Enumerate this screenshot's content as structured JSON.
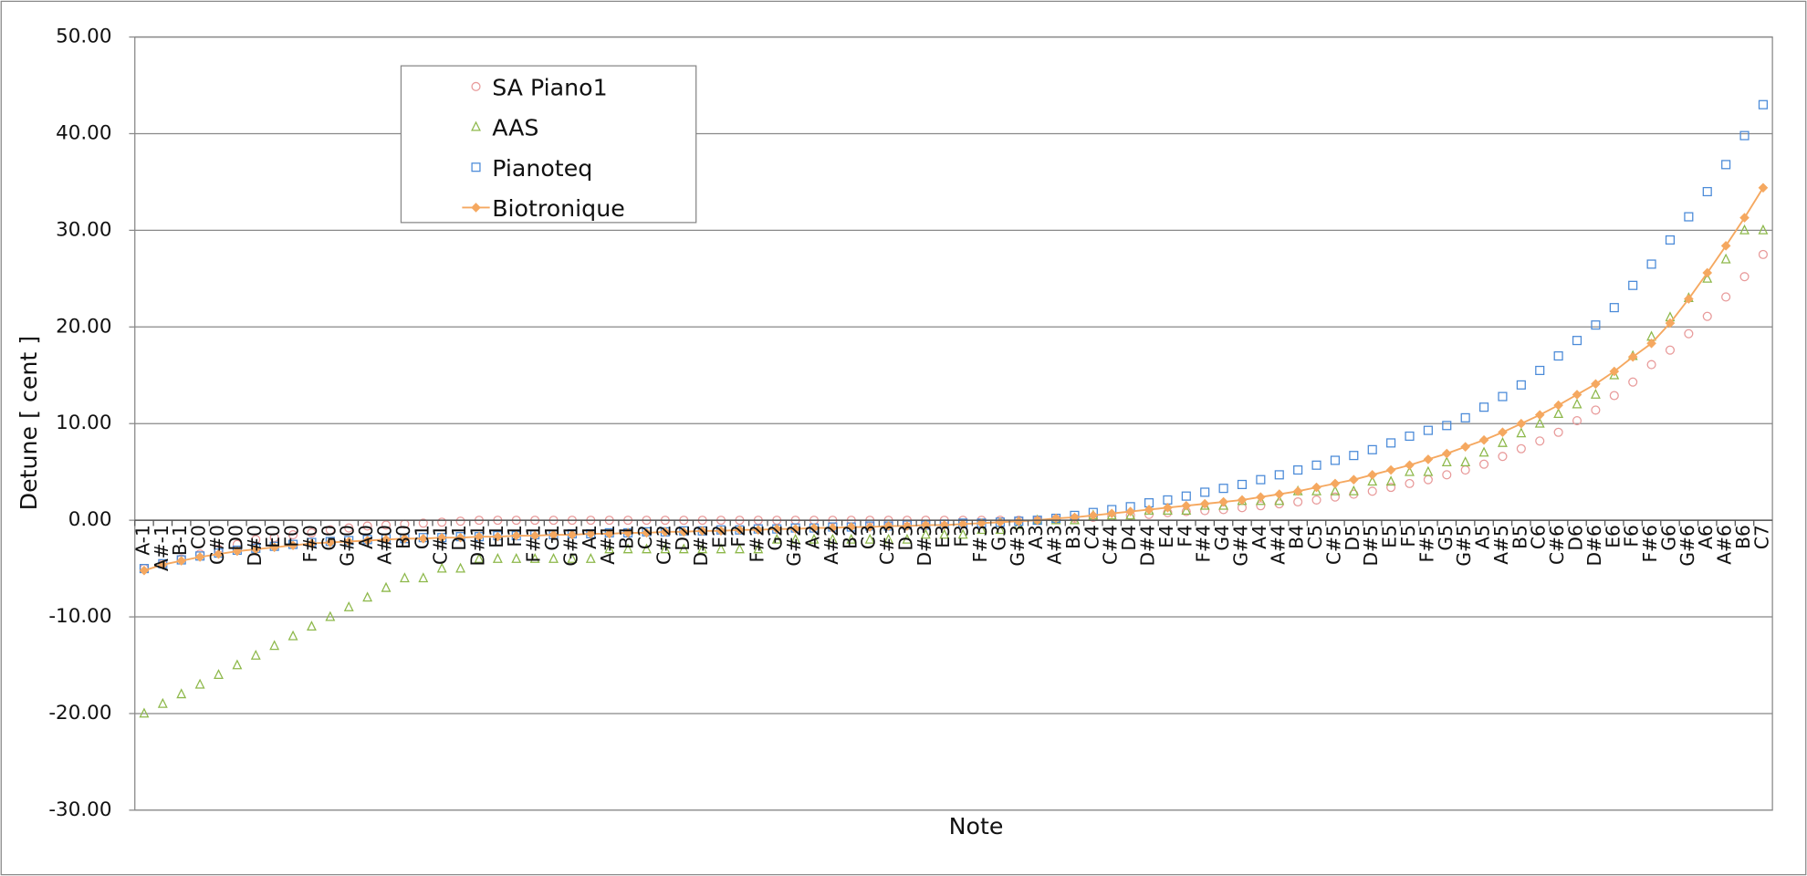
{
  "chart_data": {
    "type": "scatter",
    "ylabel": "Detune [ cent ]",
    "xlabel": "Note",
    "ylim": [
      -30,
      50
    ],
    "yticks": [
      {
        "value": -30,
        "label": "-30.00"
      },
      {
        "value": -20,
        "label": "-20.00"
      },
      {
        "value": -10,
        "label": "-10.00"
      },
      {
        "value": 0,
        "label": "0.00"
      },
      {
        "value": 10,
        "label": "10.00"
      },
      {
        "value": 20,
        "label": "20.00"
      },
      {
        "value": 30,
        "label": "30.00"
      },
      {
        "value": 40,
        "label": "40.00"
      },
      {
        "value": 50,
        "label": "50.00"
      }
    ],
    "grid": true,
    "legend": "upper left",
    "categories": [
      "A-1",
      "A#-1",
      "B-1",
      "C0",
      "C#0",
      "D0",
      "D#0",
      "E0",
      "F0",
      "F#0",
      "G0",
      "G#0",
      "A0",
      "A#0",
      "B0",
      "C1",
      "C#1",
      "D1",
      "D#1",
      "E1",
      "F1",
      "F#1",
      "G1",
      "G#1",
      "A1",
      "A#1",
      "B1",
      "C2",
      "C#2",
      "D2",
      "D#2",
      "E2",
      "F2",
      "F#2",
      "G2",
      "G#2",
      "A2",
      "A#2",
      "B2",
      "C3",
      "C#3",
      "D3",
      "D#3",
      "E3",
      "F3",
      "F#3",
      "G3",
      "G#3",
      "A3",
      "A#3",
      "B3",
      "C4",
      "C#4",
      "D4",
      "D#4",
      "E4",
      "F4",
      "F#4",
      "G4",
      "G#4",
      "A4",
      "A#4",
      "B4",
      "C5",
      "C#5",
      "D5",
      "D#5",
      "E5",
      "F5",
      "F#5",
      "G5",
      "G#5",
      "A5",
      "A#5",
      "B5",
      "C6",
      "C#6",
      "D6",
      "D#6",
      "E6",
      "F6",
      "F#6",
      "G6",
      "G#6",
      "A6",
      "A#6",
      "B6",
      "C7"
    ],
    "series": [
      {
        "name": "SA Piano1",
        "color": "#e89a9a",
        "marker": "circle",
        "line": false,
        "values": [
          -5,
          -4.5,
          -4,
          -3.5,
          -3,
          -2.5,
          -2,
          -1.8,
          -1.5,
          -1.3,
          -1,
          -0.8,
          -0.6,
          -0.5,
          -0.4,
          -0.3,
          -0.2,
          -0.1,
          0,
          0,
          0,
          0,
          0,
          0,
          0,
          0,
          0,
          0,
          0,
          0,
          0,
          0,
          0,
          0,
          0,
          0,
          0,
          0,
          0,
          0,
          0,
          0,
          0,
          0,
          0,
          0,
          0,
          0,
          0,
          0.1,
          0.2,
          0.3,
          0.4,
          0.5,
          0.6,
          0.8,
          0.9,
          1.0,
          1.1,
          1.3,
          1.5,
          1.7,
          1.9,
          2.1,
          2.4,
          2.7,
          3.0,
          3.4,
          3.8,
          4.2,
          4.7,
          5.2,
          5.8,
          6.6,
          7.4,
          8.2,
          9.1,
          10.3,
          11.4,
          12.9,
          14.3,
          16.1,
          17.6,
          19.3,
          21.1,
          23.1,
          25.2,
          27.5
        ]
      },
      {
        "name": "AAS",
        "color": "#8db84a",
        "marker": "triangle",
        "line": false,
        "values": [
          -20,
          -19,
          -18,
          -17,
          -16,
          -15,
          -14,
          -13,
          -12,
          -11,
          -10,
          -9,
          -8,
          -7,
          -6,
          -6,
          -5,
          -5,
          -4,
          -4,
          -4,
          -4,
          -4,
          -4,
          -4,
          -3,
          -3,
          -3,
          -3,
          -3,
          -3,
          -3,
          -3,
          -3,
          -2,
          -2,
          -2,
          -2,
          -2,
          -2,
          -2,
          -2,
          -1.5,
          -1.5,
          -1.5,
          -1,
          -1,
          -0.5,
          0,
          0,
          0,
          0.5,
          0.5,
          0.5,
          1,
          1,
          1,
          1.5,
          1.5,
          2,
          2,
          2,
          3,
          3,
          3,
          3,
          4,
          4,
          5,
          5,
          6,
          6,
          7,
          8,
          9,
          10,
          11,
          12,
          13,
          15,
          17,
          19,
          21,
          23,
          25,
          27,
          30,
          30
        ]
      },
      {
        "name": "Pianoteq",
        "color": "#4a8ad8",
        "marker": "square",
        "line": false,
        "values": [
          -5.0,
          -4.5,
          -4.1,
          -3.7,
          -3.4,
          -3.1,
          -2.9,
          -2.7,
          -2.5,
          -2.3,
          -2.2,
          -2.1,
          -2.0,
          -1.9,
          -1.9,
          -1.8,
          -1.8,
          -1.7,
          -1.7,
          -1.6,
          -1.6,
          -1.5,
          -1.5,
          -1.4,
          -1.4,
          -1.3,
          -1.3,
          -1.2,
          -1.2,
          -1.1,
          -1.1,
          -1.0,
          -1.0,
          -0.9,
          -0.9,
          -0.8,
          -0.8,
          -0.7,
          -0.7,
          -0.6,
          -0.6,
          -0.5,
          -0.5,
          -0.4,
          -0.3,
          -0.3,
          -0.2,
          -0.1,
          0.0,
          0.2,
          0.5,
          0.8,
          1.1,
          1.4,
          1.8,
          2.1,
          2.5,
          2.9,
          3.3,
          3.7,
          4.2,
          4.7,
          5.2,
          5.7,
          6.2,
          6.7,
          7.3,
          8.0,
          8.7,
          9.3,
          9.8,
          10.6,
          11.7,
          12.8,
          14.0,
          15.5,
          17.0,
          18.6,
          20.2,
          22.0,
          24.3,
          26.5,
          29.0,
          31.4,
          34.0,
          36.8,
          39.8,
          43.0
        ]
      },
      {
        "name": "Biotronique",
        "color": "#f5a860",
        "marker": "diamond",
        "line": true,
        "values": [
          -5.2,
          -4.6,
          -4.2,
          -3.8,
          -3.5,
          -3.2,
          -3.0,
          -2.8,
          -2.6,
          -2.4,
          -2.3,
          -2.2,
          -2.1,
          -2.0,
          -1.9,
          -1.9,
          -1.8,
          -1.8,
          -1.7,
          -1.7,
          -1.6,
          -1.6,
          -1.5,
          -1.5,
          -1.4,
          -1.4,
          -1.3,
          -1.3,
          -1.2,
          -1.2,
          -1.1,
          -1.1,
          -1.0,
          -1.0,
          -0.9,
          -0.9,
          -0.8,
          -0.8,
          -0.7,
          -0.7,
          -0.6,
          -0.6,
          -0.5,
          -0.5,
          -0.4,
          -0.3,
          -0.2,
          -0.1,
          0.0,
          0.2,
          0.3,
          0.5,
          0.7,
          0.9,
          1.1,
          1.3,
          1.5,
          1.7,
          1.9,
          2.1,
          2.4,
          2.7,
          3.0,
          3.4,
          3.8,
          4.2,
          4.7,
          5.2,
          5.7,
          6.3,
          6.9,
          7.6,
          8.3,
          9.1,
          10.0,
          10.9,
          11.9,
          13.0,
          14.1,
          15.4,
          16.9,
          18.3,
          20.4,
          22.9,
          25.6,
          28.4,
          31.3,
          34.4
        ]
      }
    ]
  }
}
